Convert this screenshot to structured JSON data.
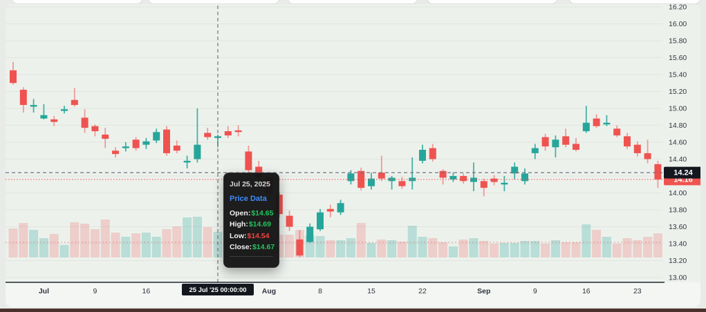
{
  "page": {
    "bottom_bar_color": "#4a312b"
  },
  "chart_data": {
    "type": "candlestick",
    "title": "Daily price candlestick chart with volume",
    "y_axis": {
      "min": 13.0,
      "max": 16.2,
      "step": 0.2,
      "price_ticks": [
        "16.20",
        "16.00",
        "15.80",
        "15.60",
        "15.40",
        "15.20",
        "15.00",
        "14.80",
        "14.60",
        "14.40",
        "14.00",
        "13.80",
        "13.60",
        "13.40",
        "13.20",
        "13.00"
      ],
      "hidden_tick": "14.20"
    },
    "x_ticks": [
      {
        "label": "Jul",
        "index": 3,
        "bold": true
      },
      {
        "label": "9",
        "index": 8
      },
      {
        "label": "16",
        "index": 13
      },
      {
        "label": "Aug",
        "index": 25,
        "bold": true
      },
      {
        "label": "8",
        "index": 30
      },
      {
        "label": "15",
        "index": 35
      },
      {
        "label": "22",
        "index": 40
      },
      {
        "label": "Sep",
        "index": 46,
        "bold": true
      },
      {
        "label": "9",
        "index": 51
      },
      {
        "label": "16",
        "index": 56
      },
      {
        "label": "23",
        "index": 61
      }
    ],
    "candles": {
      "columns": [
        "date",
        "open",
        "high",
        "low",
        "close",
        "volume"
      ],
      "rows": [
        [
          "Jun 26",
          15.45,
          15.55,
          15.28,
          15.3,
          42
        ],
        [
          "Jun 27",
          15.22,
          15.25,
          14.95,
          15.04,
          50
        ],
        [
          "Jun 30",
          15.02,
          15.11,
          14.95,
          15.04,
          40
        ],
        [
          "Jul 1",
          14.88,
          15.05,
          14.87,
          14.92,
          28
        ],
        [
          "Jul 2",
          14.87,
          14.91,
          14.79,
          14.84,
          34
        ],
        [
          "Jul 3",
          14.97,
          15.03,
          14.94,
          14.99,
          18
        ],
        [
          "Jul 7",
          15.1,
          15.24,
          15.02,
          15.04,
          51
        ],
        [
          "Jul 8",
          14.89,
          14.99,
          14.71,
          14.77,
          49
        ],
        [
          "Jul 9",
          14.79,
          14.81,
          14.67,
          14.73,
          41
        ],
        [
          "Jul 10",
          14.69,
          14.77,
          14.53,
          14.64,
          55
        ],
        [
          "Jul 11",
          14.5,
          14.54,
          14.42,
          14.46,
          36
        ],
        [
          "Jul 14",
          14.53,
          14.6,
          14.49,
          14.55,
          30
        ],
        [
          "Jul 15",
          14.63,
          14.66,
          14.5,
          14.53,
          35
        ],
        [
          "Jul 16",
          14.57,
          14.65,
          14.52,
          14.61,
          36
        ],
        [
          "Jul 17",
          14.62,
          14.76,
          14.59,
          14.72,
          30
        ],
        [
          "Jul 18",
          14.75,
          14.79,
          14.44,
          14.47,
          41
        ],
        [
          "Jul 21",
          14.56,
          14.62,
          14.47,
          14.5,
          45
        ],
        [
          "Jul 22",
          14.36,
          14.44,
          14.29,
          14.38,
          58
        ],
        [
          "Jul 23",
          14.4,
          15.0,
          14.36,
          14.57,
          59
        ],
        [
          "Jul 24",
          14.71,
          14.77,
          14.63,
          14.66,
          44
        ],
        [
          "Jul 25",
          14.65,
          14.69,
          14.54,
          14.67,
          37
        ],
        [
          "Jul 28",
          14.73,
          14.79,
          14.65,
          14.68,
          40
        ],
        [
          "Jul 29",
          14.74,
          14.8,
          14.67,
          14.72,
          38
        ],
        [
          "Jul 30",
          14.49,
          14.56,
          14.24,
          14.27,
          52
        ],
        [
          "Jul 31",
          14.31,
          14.38,
          14.14,
          14.18,
          45
        ],
        [
          "Aug 1",
          14.18,
          14.2,
          13.93,
          13.98,
          40
        ],
        [
          "Aug 4",
          13.98,
          14.01,
          13.71,
          13.75,
          33
        ],
        [
          "Aug 5",
          13.73,
          13.79,
          13.55,
          13.6,
          33
        ],
        [
          "Aug 6",
          13.45,
          13.56,
          13.24,
          13.26,
          40
        ],
        [
          "Aug 7",
          13.42,
          13.64,
          13.41,
          13.6,
          32
        ],
        [
          "Aug 8",
          13.57,
          13.81,
          13.55,
          13.77,
          31
        ],
        [
          "Aug 11",
          13.81,
          13.86,
          13.71,
          13.78,
          25
        ],
        [
          "Aug 12",
          13.77,
          13.92,
          13.74,
          13.88,
          25
        ],
        [
          "Aug 13",
          14.14,
          14.27,
          14.1,
          14.23,
          28
        ],
        [
          "Aug 14",
          14.26,
          14.3,
          14.03,
          14.06,
          50
        ],
        [
          "Aug 15",
          14.08,
          14.24,
          14.04,
          14.17,
          21
        ],
        [
          "Aug 18",
          14.24,
          14.44,
          14.14,
          14.17,
          26
        ],
        [
          "Aug 19",
          14.14,
          14.2,
          14.04,
          14.18,
          25
        ],
        [
          "Aug 20",
          14.14,
          14.19,
          14.05,
          14.08,
          23
        ],
        [
          "Aug 21",
          14.14,
          14.42,
          14.04,
          14.18,
          46
        ],
        [
          "Aug 22",
          14.38,
          14.57,
          14.35,
          14.51,
          30
        ],
        [
          "Aug 25",
          14.53,
          14.58,
          14.37,
          14.4,
          28
        ],
        [
          "Aug 26",
          14.26,
          14.28,
          14.1,
          14.18,
          22
        ],
        [
          "Aug 27",
          14.16,
          14.24,
          14.13,
          14.2,
          16
        ],
        [
          "Aug 28",
          14.2,
          14.23,
          14.11,
          14.14,
          26
        ],
        [
          "Aug 29",
          14.13,
          14.36,
          14.02,
          14.18,
          28
        ],
        [
          "Sep 2",
          14.14,
          14.17,
          13.96,
          14.06,
          24
        ],
        [
          "Sep 3",
          14.17,
          14.21,
          14.09,
          14.13,
          20
        ],
        [
          "Sep 4",
          14.1,
          14.2,
          14.02,
          14.12,
          21
        ],
        [
          "Sep 5",
          14.23,
          14.36,
          14.16,
          14.31,
          21
        ],
        [
          "Sep 8",
          14.14,
          14.29,
          14.1,
          14.23,
          24
        ],
        [
          "Sep 9",
          14.47,
          14.58,
          14.4,
          14.53,
          24
        ],
        [
          "Sep 10",
          14.66,
          14.7,
          14.5,
          14.55,
          20
        ],
        [
          "Sep 11",
          14.54,
          14.68,
          14.42,
          14.63,
          25
        ],
        [
          "Sep 12",
          14.67,
          14.76,
          14.54,
          14.57,
          22
        ],
        [
          "Sep 15",
          14.58,
          14.65,
          14.49,
          14.51,
          22
        ],
        [
          "Sep 16",
          14.73,
          15.03,
          14.71,
          14.83,
          48
        ],
        [
          "Sep 17",
          14.88,
          14.93,
          14.77,
          14.79,
          40
        ],
        [
          "Sep 18",
          14.81,
          14.92,
          14.79,
          14.83,
          30
        ],
        [
          "Sep 19",
          14.76,
          14.8,
          14.66,
          14.68,
          20
        ],
        [
          "Sep 22",
          14.67,
          14.71,
          14.52,
          14.55,
          28
        ],
        [
          "Sep 23",
          14.57,
          14.61,
          14.43,
          14.47,
          25
        ],
        [
          "Sep 24",
          14.47,
          14.63,
          14.35,
          14.4,
          30
        ],
        [
          "Sep 25",
          14.34,
          14.38,
          14.06,
          14.16,
          35
        ]
      ]
    },
    "crosshair": {
      "candle_index": 20,
      "price": 14.24,
      "price_label": "14.24",
      "time_label": "25 Jul '25  00:00:00"
    },
    "last_price": {
      "value": 14.16,
      "label": "14.16"
    },
    "volume_avg_level": 22,
    "tooltip": {
      "date": "Jul 25, 2025",
      "section": "Price Data",
      "rows": [
        {
          "label": "Open:",
          "value": "$14.65",
          "color": "#22c55e"
        },
        {
          "label": "High:",
          "value": "$14.69",
          "color": "#22c55e"
        },
        {
          "label": "Low:",
          "value": "$14.54",
          "color": "#ef4444"
        },
        {
          "label": "Close:",
          "value": "$14.67",
          "color": "#22c55e"
        }
      ]
    },
    "colors": {
      "up": "#26a69a",
      "down": "#ef5350",
      "up_wick": "rgba(38,166,154,0.85)",
      "down_wick": "rgba(239,83,80,0.55)",
      "volume_up": "rgba(38,166,154,0.26)",
      "volume_down": "rgba(239,83,80,0.22)",
      "plot_bg": "#edf1ec",
      "axis_strip_bg": "#f3f6f2",
      "grid": "rgba(110,125,110,0.10)",
      "axis_line": "#1e222d",
      "crosshair": "#70737e",
      "badge_black": "#14171e",
      "badge_red": "#ef5350",
      "last_price_line": "#ef5350",
      "volume_avg_line": "rgba(232,110,110,0.55)",
      "label_text": "#31343f"
    }
  }
}
